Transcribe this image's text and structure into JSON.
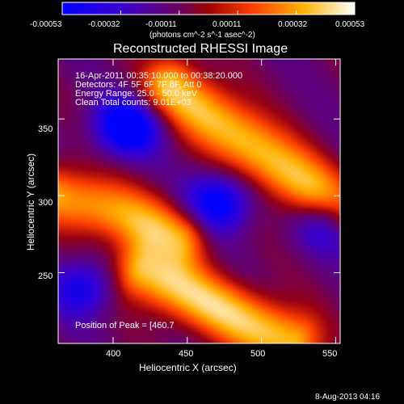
{
  "colorbar": {
    "tick_labels": [
      "-0.00053",
      "-0.00032",
      "-0.00011",
      "0.00011",
      "0.00032",
      "0.00053"
    ],
    "units_label": "(photons cm^-2 s^-1 asec^-2)"
  },
  "info_lines": [
    "16-Apr-2011 00:35:10.000 to 00:38:20.000",
    "Detectors: 4F 5F 6F 7F 8F, Att 0",
    "Energy Range: 25.0 - 50.0 keV",
    "Clean     Total counts: 9.01E+03"
  ],
  "peak_text": "Position of Peak = [460.7",
  "footer_date": "8-Aug-2013 04:16",
  "chart_data": {
    "type": "heatmap",
    "title": "Reconstructed RHESSI Image",
    "xlabel": "Heliocentric X (arcsec)",
    "ylabel": "Heliocentric Y (arcsec)",
    "xlim": [
      363,
      553
    ],
    "ylim": [
      204,
      389
    ],
    "x_ticks": [
      400,
      450,
      500,
      550
    ],
    "y_ticks": [
      250,
      300,
      350
    ],
    "colorscale": [
      "#0000ff",
      "#5a0090",
      "#aa0000",
      "#ff6000",
      "#ffd200",
      "#ffffff"
    ],
    "value_range": [
      -0.00053,
      0.00053
    ],
    "features": [
      {
        "kind": "bright_ridge",
        "from": [
          440,
          370
        ],
        "to": [
          553,
          290
        ],
        "value": 0.00053
      },
      {
        "kind": "bright_ridge",
        "from": [
          365,
          300
        ],
        "to": [
          445,
          275
        ],
        "value": 0.00045
      },
      {
        "kind": "bright_ridge",
        "from": [
          420,
          250
        ],
        "to": [
          520,
          205
        ],
        "value": 0.00053
      },
      {
        "kind": "negative_lobe",
        "center": [
          410,
          345
        ],
        "value": -0.00053
      },
      {
        "kind": "negative_lobe",
        "center": [
          470,
          295
        ],
        "value": -0.00048
      },
      {
        "kind": "negative_lobe",
        "center": [
          548,
          282
        ],
        "value": -0.00045
      },
      {
        "kind": "negative_lobe",
        "center": [
          380,
          240
        ],
        "value": -0.00035
      }
    ]
  }
}
